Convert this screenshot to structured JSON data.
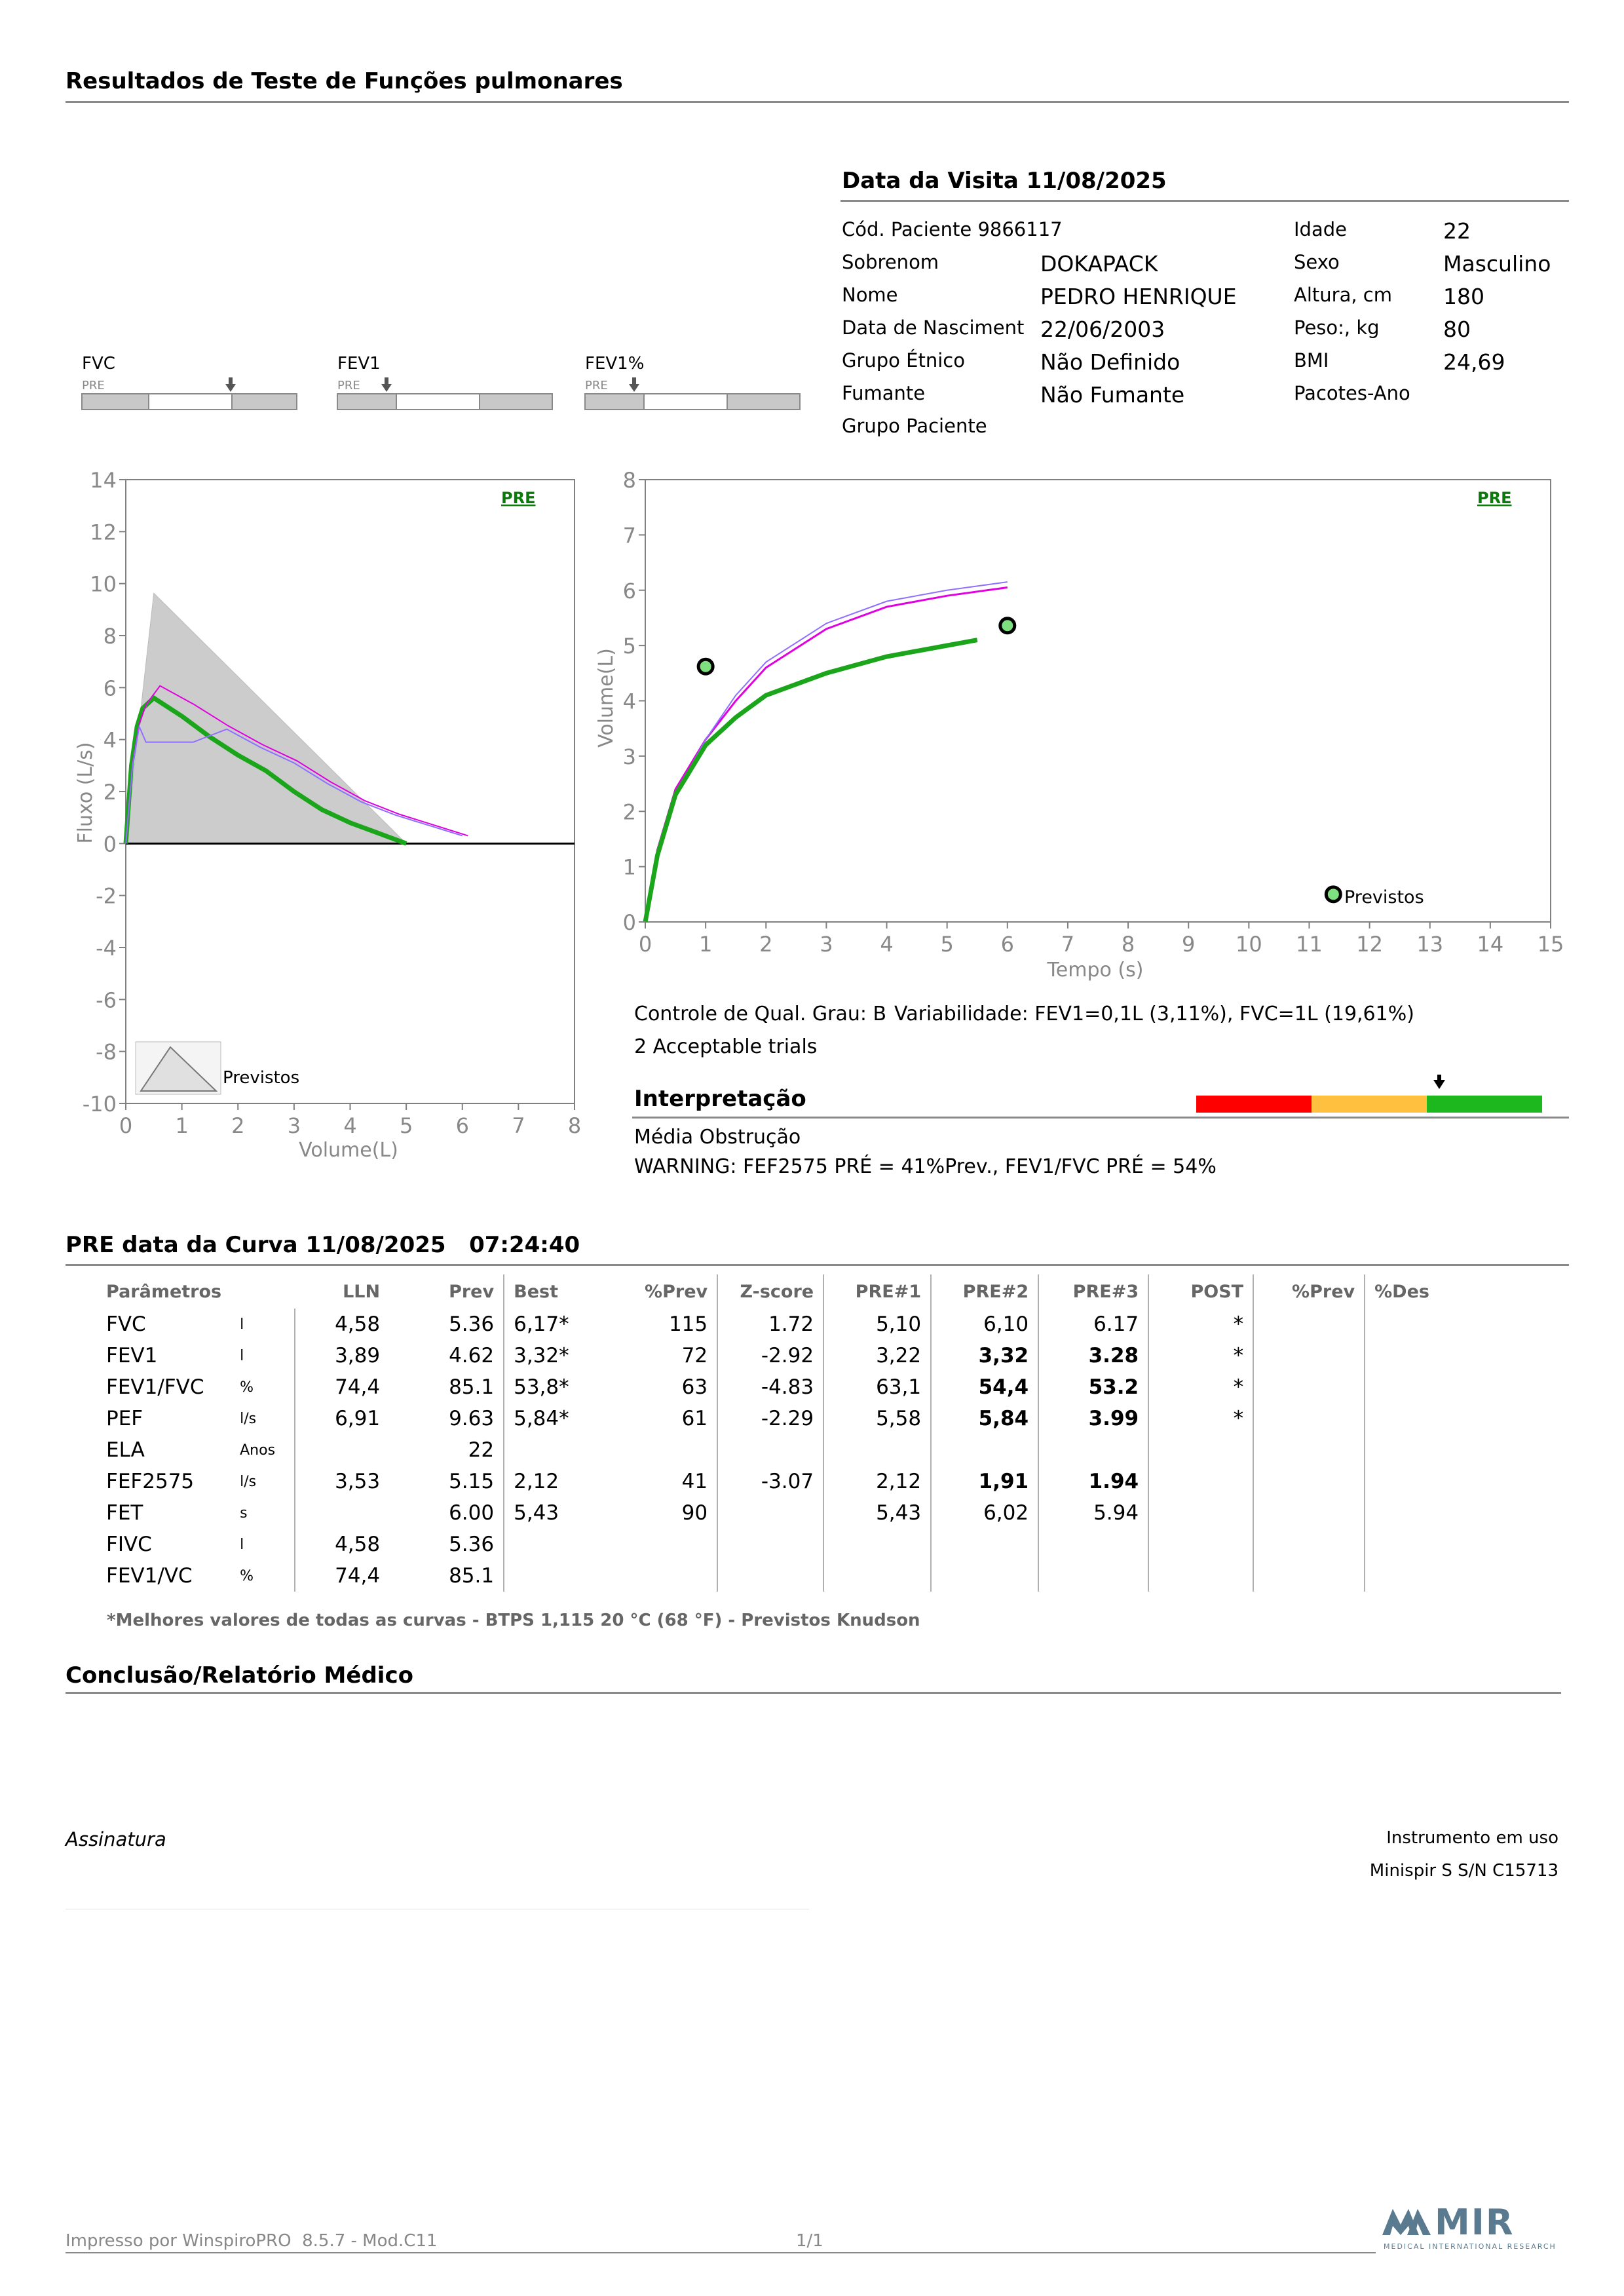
{
  "header": {
    "title": "Resultados de Teste de Funções pulmonares"
  },
  "visit": {
    "title": "Data da Visita 11/08/2025",
    "left": [
      {
        "label": "Cód. Paciente 9866117",
        "value": ""
      },
      {
        "label": "Sobrenom",
        "value": "DOKAPACK"
      },
      {
        "label": "Nome",
        "value": "PEDRO HENRIQUE"
      },
      {
        "label": "Data de Nasciment",
        "value": "22/06/2003"
      },
      {
        "label": "Grupo Étnico",
        "value": "Não Definido"
      },
      {
        "label": "Fumante",
        "value": "Não Fumante"
      },
      {
        "label": "Grupo Paciente",
        "value": ""
      }
    ],
    "right": [
      {
        "label": "Idade",
        "value": "22"
      },
      {
        "label": "Sexo",
        "value": "Masculino"
      },
      {
        "label": "Altura, cm",
        "value": "180"
      },
      {
        "label": "Peso:, kg",
        "value": "80"
      },
      {
        "label": "BMI",
        "value": "24,69"
      },
      {
        "label": "Pacotes-Ano",
        "value": ""
      }
    ]
  },
  "indicator_bars": [
    {
      "label": "FVC",
      "sub": "PRE"
    },
    {
      "label": "FEV1",
      "sub": "PRE"
    },
    {
      "label": "FEV1%",
      "sub": "PRE"
    }
  ],
  "flow_chart": {
    "tag": "PRE",
    "ylabel": "Fluxo (L/s)",
    "xlabel": "Volume(L)",
    "legend": "Previstos",
    "yticks": [
      "14",
      "12",
      "10",
      "8",
      "6",
      "4",
      "2",
      "0",
      "-2",
      "-4",
      "-6",
      "-8",
      "-10"
    ],
    "xticks": [
      "0",
      "1",
      "2",
      "3",
      "4",
      "5",
      "6",
      "7",
      "8"
    ]
  },
  "time_chart": {
    "tag": "PRE",
    "ylabel": "Volume(L)",
    "xlabel": "Tempo (s)",
    "legend": "Previstos",
    "yticks": [
      "8",
      "7",
      "6",
      "5",
      "4",
      "3",
      "2",
      "1",
      "0"
    ],
    "xticks": [
      "0",
      "1",
      "2",
      "3",
      "4",
      "5",
      "6",
      "7",
      "8",
      "9",
      "10",
      "11",
      "12",
      "13",
      "14",
      "15"
    ]
  },
  "chart_data": [
    {
      "type": "line",
      "title": "",
      "xlabel": "Volume(L)",
      "ylabel": "Fluxo (L/s)",
      "xlim": [
        0,
        8
      ],
      "ylim": [
        -10,
        14
      ],
      "series": [
        {
          "name": "Previstos",
          "x": [
            0.0,
            0.5,
            5.0
          ],
          "y": [
            0.0,
            9.63,
            0.0
          ]
        },
        {
          "name": "PRE",
          "x": [
            0.0,
            0.1,
            0.2,
            0.3,
            0.5,
            1.0,
            1.5,
            2.0,
            2.5,
            3.0,
            3.5,
            4.0,
            4.5,
            5.0
          ],
          "y": [
            0.0,
            3.0,
            4.5,
            5.2,
            5.6,
            4.9,
            4.1,
            3.4,
            2.8,
            2.0,
            1.3,
            0.8,
            0.4,
            0.0
          ]
        }
      ]
    },
    {
      "type": "line",
      "title": "",
      "xlabel": "Tempo (s)",
      "ylabel": "Volume(L)",
      "xlim": [
        0,
        15
      ],
      "ylim": [
        0,
        8
      ],
      "series": [
        {
          "name": "PRE",
          "x": [
            0.0,
            0.2,
            0.5,
            1.0,
            1.5,
            2.0,
            3.0,
            4.0,
            5.0,
            5.5
          ],
          "y": [
            0.0,
            1.2,
            2.3,
            3.2,
            3.7,
            4.1,
            4.5,
            4.8,
            5.0,
            5.1
          ]
        },
        {
          "name": "Previstos",
          "x": [
            1.0,
            6.0,
            11.4
          ],
          "y": [
            4.62,
            5.36,
            0.5
          ]
        }
      ]
    }
  ],
  "quality": {
    "grade": "Controle de Qual. Grau: B",
    "variability": "Variabilidade: FEV1=0,1L (3,11%), FVC=1L (19,61%)",
    "trials": "2 Acceptable trials"
  },
  "interpretation": {
    "title": "Interpretação",
    "line1": "Média Obstrução",
    "line2": "WARNING: FEF2575 PRÉ = 41%Prev., FEV1/FVC PRÉ = 54%",
    "scale_colors": [
      "#ff0000",
      "#ffbf3f",
      "#1db81d"
    ]
  },
  "curve": {
    "title": "PRE data da Curva 11/08/2025   07:24:40"
  },
  "table": {
    "headers": [
      "Parâmetros",
      "",
      "LLN",
      "Prev",
      "Best",
      "%Prev",
      "Z-score",
      "PRE#1",
      "PRE#2",
      "PRE#3",
      "POST",
      "%Prev",
      "%Des"
    ],
    "rows": [
      [
        "FVC",
        "l",
        "4,58",
        "5.36",
        "6,17*",
        "115",
        "1.72",
        "5,10",
        "6,10",
        "6.17",
        "*",
        "",
        ""
      ],
      [
        "FEV1",
        "l",
        "3,89",
        "4.62",
        "3,32*",
        "72",
        "-2.92",
        "3,22",
        "3,32",
        "3.28",
        "*",
        "",
        ""
      ],
      [
        "FEV1/FVC",
        "%",
        "74,4",
        "85.1",
        "53,8*",
        "63",
        "-4.83",
        "63,1",
        "54,4",
        "53.2",
        "*",
        "",
        ""
      ],
      [
        "PEF",
        "l/s",
        "6,91",
        "9.63",
        "5,84*",
        "61",
        "-2.29",
        "5,58",
        "5,84",
        "3.99",
        "*",
        "",
        ""
      ],
      [
        "ELA",
        "Anos",
        "",
        "22",
        "",
        "",
        "",
        "",
        "",
        "",
        "",
        "",
        ""
      ],
      [
        "FEF2575",
        "l/s",
        "3,53",
        "5.15",
        "2,12",
        "41",
        "-3.07",
        "2,12",
        "1,91",
        "1.94",
        "",
        "",
        ""
      ],
      [
        "FET",
        "s",
        "",
        "6.00",
        "5,43",
        "90",
        "",
        "5,43",
        "6,02",
        "5.94",
        "",
        "",
        ""
      ],
      [
        "FIVC",
        "l",
        "4,58",
        "5.36",
        "",
        "",
        "",
        "",
        "",
        "",
        "",
        "",
        ""
      ],
      [
        "FEV1/VC",
        "%",
        "74,4",
        "85.1",
        "",
        "",
        "",
        "",
        "",
        "",
        "",
        "",
        ""
      ]
    ],
    "footnote": "*Melhores valores de todas as curvas - BTPS  1,115  20 °C  (68 °F) - Previstos Knudson"
  },
  "conclusion": {
    "title": "Conclusão/Relatório Médico"
  },
  "signature": {
    "label": "Assinatura"
  },
  "instrument": {
    "title": "Instrumento em uso",
    "model": "Minispir S S/N C15713"
  },
  "footer": {
    "printed": "Impresso por WinspiroPRO  8.5.7 - Mod.C11",
    "page": "1/1",
    "logo_text": "MIR",
    "logo_sub": "MEDICAL INTERNATIONAL RESEARCH"
  }
}
